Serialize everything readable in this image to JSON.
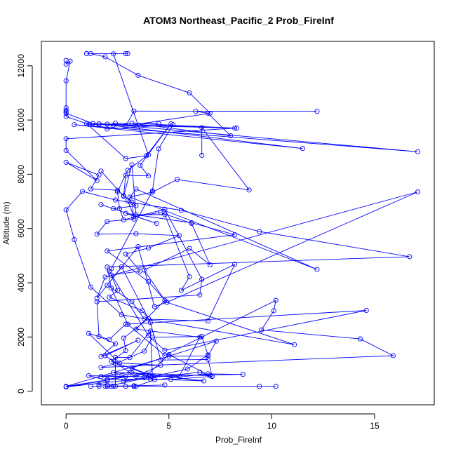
{
  "chart_data": {
    "type": "line",
    "title": "ATOM3 Northeast_Pacific_2 Prob_FireInf",
    "xlabel": "Prob_FireInf",
    "ylabel": "Altitude (m)",
    "xlim": [
      -1.2,
      17.9
    ],
    "ylim": [
      -500,
      12900
    ],
    "x_ticks": [
      0,
      5,
      10,
      15
    ],
    "y_ticks": [
      0,
      2000,
      4000,
      6000,
      8000,
      10000,
      12000
    ],
    "grid": false,
    "legend": "none",
    "line_color": "#0000ff",
    "marker": "open-circle",
    "series": [
      {
        "values": [
          [
            1.0,
            12450
          ],
          [
            3.0,
            12450
          ],
          [
            2.9,
            12450
          ],
          [
            1.0,
            12450
          ],
          [
            1.2,
            12450
          ],
          [
            1.9,
            12330
          ],
          [
            3.5,
            11650
          ],
          [
            6.0,
            11000
          ],
          [
            7.0,
            10250
          ],
          [
            2.9,
            9780
          ],
          [
            3.3,
            10330
          ],
          [
            12.2,
            10320
          ],
          [
            6.3,
            10320
          ],
          [
            6.9,
            10250
          ],
          [
            8.0,
            9420
          ],
          [
            3.2,
            9880
          ],
          [
            8.3,
            9700
          ],
          [
            1.6,
            9860
          ],
          [
            11.5,
            8950
          ],
          [
            0.4,
            9830
          ],
          [
            17.1,
            8830
          ],
          [
            2.0,
            9850
          ],
          [
            1.0,
            9870
          ],
          [
            2.9,
            8580
          ],
          [
            3.9,
            8680
          ],
          [
            5.1,
            9860
          ],
          [
            3.6,
            8330
          ],
          [
            4.0,
            7940
          ],
          [
            2.9,
            7960
          ],
          [
            2.8,
            7210
          ],
          [
            3.2,
            6970
          ],
          [
            3.3,
            6350
          ],
          [
            2.0,
            6260
          ],
          [
            1.5,
            5790
          ],
          [
            3.4,
            5810
          ],
          [
            5.5,
            5740
          ],
          [
            4.0,
            5280
          ],
          [
            2.9,
            5060
          ],
          [
            3.6,
            4430
          ],
          [
            2.2,
            4280
          ],
          [
            2.5,
            3720
          ],
          [
            2.1,
            3470
          ],
          [
            3.7,
            2970
          ],
          [
            4.0,
            2680
          ],
          [
            2.8,
            1960
          ],
          [
            2.9,
            1500
          ],
          [
            2.2,
            1100
          ],
          [
            3.9,
            640
          ],
          [
            0.0,
            180
          ],
          [
            5.0,
            1290
          ],
          [
            6.9,
            1300
          ],
          [
            7.3,
            1850
          ],
          [
            3.2,
            860
          ],
          [
            4.2,
            560
          ],
          [
            8.6,
            620
          ],
          [
            6.9,
            640
          ],
          [
            4.3,
            420
          ],
          [
            3.4,
            180
          ],
          [
            2.9,
            180
          ],
          [
            3.3,
            180
          ],
          [
            2.2,
            180
          ],
          [
            10.2,
            180
          ],
          [
            9.4,
            180
          ]
        ]
      },
      {
        "values": [
          [
            0.0,
            12200
          ],
          [
            0.0,
            12060
          ],
          [
            0.2,
            12170
          ],
          [
            0.0,
            11450
          ],
          [
            0.0,
            10450
          ],
          [
            0.0,
            10350
          ],
          [
            0.0,
            10290
          ],
          [
            0.0,
            10130
          ],
          [
            1.1,
            9840
          ],
          [
            8.2,
            9700
          ],
          [
            0.0,
            9310
          ],
          [
            0.0,
            8880
          ],
          [
            1.5,
            7770
          ],
          [
            0.0,
            8440
          ],
          [
            1.6,
            7970
          ],
          [
            1.2,
            7460
          ],
          [
            2.5,
            7410
          ],
          [
            3.4,
            6840
          ],
          [
            2.3,
            6730
          ],
          [
            1.7,
            6880
          ],
          [
            4.4,
            6190
          ],
          [
            2.9,
            6560
          ],
          [
            6.1,
            6210
          ],
          [
            8.2,
            5770
          ],
          [
            2.0,
            5170
          ],
          [
            4.0,
            4040
          ],
          [
            4.9,
            3280
          ],
          [
            11.1,
            1720
          ],
          [
            2.7,
            2820
          ],
          [
            1.2,
            3840
          ],
          [
            0.4,
            5590
          ],
          [
            0.0,
            6690
          ],
          [
            0.8,
            7370
          ],
          [
            2.4,
            7050
          ],
          [
            5.6,
            6670
          ],
          [
            9.4,
            5890
          ],
          [
            16.7,
            4960
          ],
          [
            2.0,
            4580
          ],
          [
            2.2,
            3800
          ],
          [
            3.0,
            2470
          ],
          [
            4.8,
            1320
          ],
          [
            10.2,
            3350
          ],
          [
            10.1,
            2970
          ],
          [
            9.5,
            2260
          ],
          [
            14.3,
            1930
          ],
          [
            15.9,
            1310
          ],
          [
            1.7,
            880
          ],
          [
            2.4,
            1010
          ],
          [
            3.8,
            1480
          ],
          [
            4.2,
            1990
          ],
          [
            6.6,
            2020
          ],
          [
            6.9,
            1340
          ],
          [
            5.9,
            820
          ],
          [
            2.0,
            180
          ],
          [
            2.0,
            220
          ],
          [
            1.6,
            240
          ],
          [
            1.6,
            180
          ],
          [
            1.2,
            180
          ]
        ]
      },
      {
        "values": [
          [
            2.3,
            12440
          ],
          [
            4.0,
            8720
          ],
          [
            3.0,
            8150
          ],
          [
            2.5,
            7360
          ],
          [
            2.6,
            6730
          ],
          [
            2.8,
            6320
          ],
          [
            4.8,
            6710
          ],
          [
            6.6,
            4130
          ],
          [
            6.5,
            3550
          ],
          [
            1.5,
            3300
          ],
          [
            1.6,
            2020
          ],
          [
            2.4,
            1750
          ],
          [
            1.7,
            1280
          ],
          [
            3.5,
            1880
          ],
          [
            1.9,
            1310
          ],
          [
            3.1,
            690
          ],
          [
            1.7,
            540
          ],
          [
            4.1,
            540
          ],
          [
            3.2,
            690
          ],
          [
            6.7,
            380
          ],
          [
            4.1,
            450
          ],
          [
            2.0,
            440
          ],
          [
            2.9,
            550
          ],
          [
            2.3,
            690
          ],
          [
            7.0,
            570
          ],
          [
            5.0,
            1350
          ],
          [
            3.8,
            500
          ],
          [
            2.8,
            360
          ]
        ]
      },
      {
        "values": [
          [
            6.6,
            8700
          ],
          [
            6.6,
            9720
          ],
          [
            8.9,
            7420
          ],
          [
            5.4,
            7810
          ],
          [
            4.2,
            7340
          ],
          [
            3.1,
            7160
          ],
          [
            12.2,
            4490
          ],
          [
            3.4,
            7460
          ],
          [
            3.0,
            7020
          ],
          [
            3.3,
            6440
          ],
          [
            4.6,
            6590
          ],
          [
            6.1,
            6190
          ],
          [
            7.0,
            4660
          ],
          [
            6.0,
            5260
          ],
          [
            3.8,
            4470
          ],
          [
            4.8,
            3350
          ],
          [
            3.4,
            2290
          ],
          [
            6.5,
            1990
          ],
          [
            5.5,
            550
          ],
          [
            4.2,
            550
          ],
          [
            4.1,
            2220
          ],
          [
            3.1,
            1240
          ],
          [
            2.4,
            1250
          ],
          [
            2.4,
            180
          ],
          [
            1.9,
            180
          ],
          [
            2.3,
            190
          ],
          [
            3.3,
            200
          ],
          [
            4.8,
            230
          ]
        ]
      },
      {
        "values": [
          [
            4.5,
            9870
          ],
          [
            2.4,
            9880
          ],
          [
            2.3,
            9810
          ],
          [
            1.6,
            9860
          ],
          [
            1.3,
            9870
          ],
          [
            0.0,
            10250
          ],
          [
            2.0,
            9670
          ],
          [
            5.2,
            9830
          ],
          [
            4.5,
            8940
          ],
          [
            4.2,
            7390
          ],
          [
            2.2,
            4520
          ],
          [
            2.1,
            4430
          ],
          [
            4.0,
            2050
          ],
          [
            4.8,
            1510
          ],
          [
            14.6,
            2980
          ],
          [
            2.9,
            2470
          ],
          [
            2.1,
            1910
          ],
          [
            1.1,
            2130
          ],
          [
            2.6,
            1040
          ],
          [
            4.6,
            960
          ],
          [
            3.4,
            550
          ],
          [
            1.1,
            570
          ],
          [
            2.0,
            400
          ],
          [
            0.0,
            160
          ],
          [
            6.5,
            700
          ],
          [
            7.1,
            540
          ]
        ]
      },
      {
        "values": [
          [
            1.7,
            8120
          ],
          [
            2.8,
            7190
          ],
          [
            3.2,
            8350
          ],
          [
            3.4,
            6510
          ],
          [
            4.8,
            6510
          ],
          [
            6.0,
            4220
          ],
          [
            5.6,
            3720
          ],
          [
            8.2,
            4680
          ],
          [
            6.9,
            2590
          ],
          [
            3.8,
            2660
          ],
          [
            3.2,
            3310
          ],
          [
            2.0,
            3910
          ],
          [
            3.5,
            5330
          ],
          [
            4.3,
            3120
          ],
          [
            4.9,
            3280
          ],
          [
            17.1,
            7350
          ],
          [
            1.9,
            4210
          ],
          [
            1.5,
            3430
          ],
          [
            2.7,
            4590
          ],
          [
            4.1,
            2530
          ],
          [
            4.6,
            1150
          ],
          [
            6.9,
            1170
          ],
          [
            7.1,
            550
          ],
          [
            5.1,
            430
          ]
        ]
      }
    ]
  }
}
